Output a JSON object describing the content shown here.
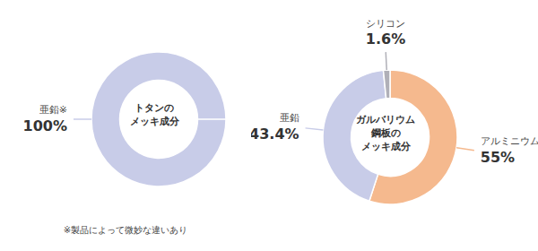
{
  "chart_data": [
    {
      "type": "pie",
      "categories": [
        "亜鉛※"
      ],
      "values": [
        100
      ],
      "value_labels": [
        "100%"
      ],
      "colors": [
        "#c8cce8"
      ],
      "annotations": [
        "トタンの",
        "メッキ成分"
      ],
      "subtitle": "※製品によって微妙な違いあり",
      "data_labels": true
    },
    {
      "type": "pie",
      "categories": [
        "アルミニウム",
        "亜鉛",
        "シリコン"
      ],
      "values": [
        55,
        43.4,
        1.6
      ],
      "value_labels": [
        "55%",
        "43.4%",
        "1.6%"
      ],
      "colors": [
        "#f5b98e",
        "#c8cce8",
        "#b0b0b8"
      ],
      "annotations": [
        "ガルバリウム",
        "鋼板の",
        "メッキ成分"
      ],
      "data_labels": true
    }
  ]
}
